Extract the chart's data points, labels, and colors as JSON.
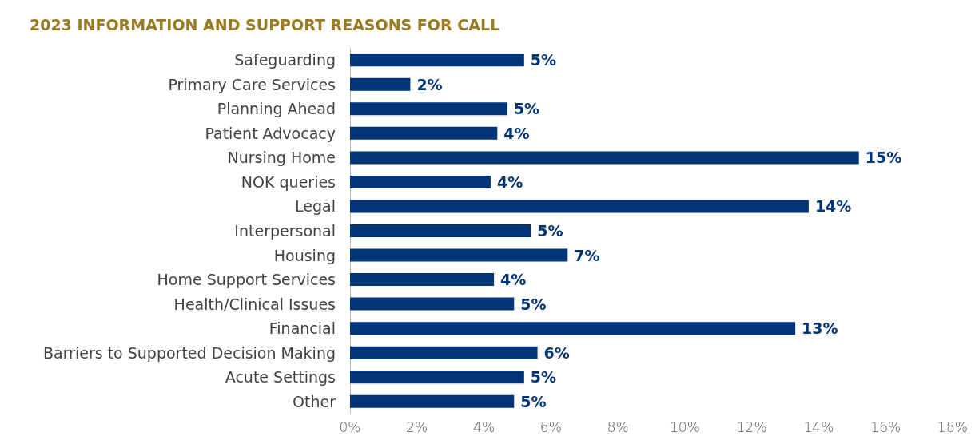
{
  "chart_data": {
    "type": "bar",
    "orientation": "horizontal",
    "title": "2023 INFORMATION AND SUPPORT REASONS FOR CALL",
    "categories": [
      "Safeguarding",
      "Primary Care Services",
      "Planning Ahead",
      "Patient Advocacy",
      "Nursing Home",
      "NOK queries",
      "Legal",
      "Interpersonal",
      "Housing",
      "Home Support Services",
      "Health/Clinical Issues",
      "Financial",
      "Barriers to Supported Decision Making",
      "Acute Settings",
      "Other"
    ],
    "values": [
      5.2,
      1.8,
      4.7,
      4.4,
      15.2,
      4.2,
      13.7,
      5.4,
      6.5,
      4.3,
      4.9,
      13.3,
      5.6,
      5.2,
      4.9
    ],
    "value_labels": [
      "5%",
      "2%",
      "5%",
      "4%",
      "15%",
      "4%",
      "14%",
      "5%",
      "7%",
      "4%",
      "5%",
      "13%",
      "6%",
      "5%",
      "5%"
    ],
    "color": "#003478",
    "xlim": [
      0,
      18
    ],
    "xticks": [
      {
        "value": 0,
        "label": "0%"
      },
      {
        "value": 2,
        "label": "2%"
      },
      {
        "value": 4,
        "label": "4%"
      },
      {
        "value": 6,
        "label": "6%"
      },
      {
        "value": 8,
        "label": "8%"
      },
      {
        "value": 10,
        "label": "10%"
      },
      {
        "value": 12,
        "label": "12%"
      },
      {
        "value": 14,
        "label": "14%"
      },
      {
        "value": 16,
        "label": "16%"
      },
      {
        "value": 18,
        "label": "18%"
      }
    ],
    "grid": false
  }
}
